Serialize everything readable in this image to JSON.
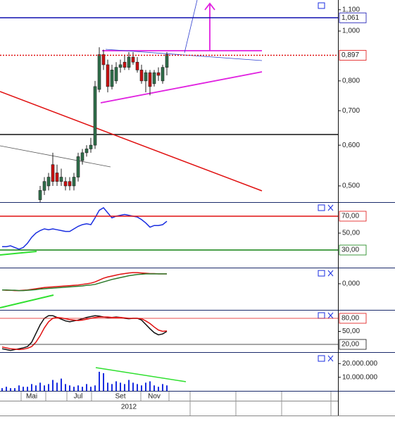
{
  "chart_data": [
    {
      "type": "candlestick",
      "log": true,
      "categories": [
        null,
        null,
        null,
        null,
        null,
        null,
        null,
        "Mai",
        null,
        null,
        null,
        null,
        null,
        null,
        null,
        null,
        null,
        null,
        "Jul",
        null,
        null,
        null,
        null,
        null,
        null,
        null,
        null,
        null,
        "Set",
        null,
        null,
        null,
        null,
        null,
        null,
        null,
        "Nov",
        null,
        null,
        null
      ],
      "xlabel": "2012",
      "open": [
        null,
        null,
        null,
        null,
        null,
        null,
        null,
        null,
        null,
        0.47,
        0.49,
        0.5,
        0.55,
        0.53,
        0.51,
        0.51,
        0.51,
        0.5,
        0.52,
        0.56,
        0.58,
        0.59,
        0.6,
        0.77,
        0.9,
        0.86,
        0.78,
        0.8,
        0.85,
        0.87,
        0.85,
        0.89,
        0.87,
        0.84,
        0.8,
        0.83,
        0.79,
        0.83,
        0.8,
        0.85
      ],
      "high": [
        null,
        null,
        null,
        null,
        null,
        null,
        null,
        null,
        null,
        0.5,
        0.52,
        0.53,
        0.58,
        0.55,
        0.54,
        0.52,
        0.52,
        0.53,
        0.58,
        0.59,
        0.6,
        0.62,
        0.8,
        0.93,
        0.92,
        0.88,
        0.86,
        0.87,
        0.88,
        0.9,
        0.91,
        0.91,
        0.89,
        0.86,
        0.84,
        0.84,
        0.84,
        0.85,
        0.86,
        0.91
      ],
      "low": [
        null,
        null,
        null,
        null,
        null,
        null,
        null,
        null,
        null,
        0.46,
        0.48,
        0.49,
        0.5,
        0.5,
        0.5,
        0.49,
        0.49,
        0.49,
        0.51,
        0.55,
        0.57,
        0.58,
        0.59,
        0.76,
        0.84,
        0.76,
        0.77,
        0.79,
        0.83,
        0.84,
        0.84,
        0.86,
        0.83,
        0.79,
        0.76,
        0.75,
        0.78,
        0.8,
        0.79,
        0.82
      ],
      "close": [
        null,
        null,
        null,
        null,
        null,
        null,
        null,
        null,
        null,
        0.49,
        0.51,
        0.52,
        0.51,
        0.51,
        0.52,
        0.5,
        0.5,
        0.52,
        0.57,
        0.58,
        0.59,
        0.6,
        0.78,
        0.9,
        0.86,
        0.78,
        0.84,
        0.85,
        0.86,
        0.85,
        0.89,
        0.87,
        0.84,
        0.8,
        0.83,
        0.78,
        0.83,
        0.82,
        0.85,
        0.9
      ],
      "up_color": "#2f6f4a",
      "down_color": "#cc1010",
      "ylim": [
        0.465,
        1.149
      ],
      "yticks": [
        {
          "value": 1.1,
          "label": "1,100"
        },
        {
          "value": 1.0,
          "label": "1,000"
        },
        {
          "value": 0.8,
          "label": "0,800"
        },
        {
          "value": 0.7,
          "label": "0,700"
        },
        {
          "value": 0.6,
          "label": "0,600"
        },
        {
          "value": 0.5,
          "label": "0,500"
        }
      ],
      "levels": [
        {
          "value": 1.061,
          "label": "1,061",
          "color": "#1010b0",
          "style": "solid"
        },
        {
          "value": 0.897,
          "label": "0,897",
          "color": "#e01010",
          "style": "dotted"
        }
      ]
    },
    {
      "type": "line",
      "series": [
        {
          "color": "#1a2ee0",
          "values": [
            34,
            34,
            35,
            33,
            31,
            33,
            38,
            45,
            50,
            53,
            55,
            54,
            55,
            54,
            53,
            52,
            52,
            55,
            58,
            60,
            61,
            60,
            68,
            77,
            80,
            74,
            68,
            70,
            71,
            72,
            71,
            70,
            69,
            66,
            62,
            57,
            59,
            59,
            60,
            64
          ]
        }
      ],
      "ylim": [
        9.2,
        85.8
      ],
      "yticks": [
        {
          "value": 50,
          "label": "50,00"
        }
      ],
      "levels": [
        {
          "value": 70,
          "label": "70,00",
          "color": "#e01010",
          "style": "solid"
        },
        {
          "value": 30,
          "label": "30,00",
          "color": "#108010",
          "style": "solid"
        }
      ]
    },
    {
      "type": "line",
      "series": [
        {
          "color": "#e01010",
          "values": [
            -0.02,
            -0.021,
            -0.021,
            -0.022,
            -0.022,
            -0.021,
            -0.02,
            -0.018,
            -0.016,
            -0.014,
            -0.012,
            -0.011,
            -0.01,
            -0.009,
            -0.008,
            -0.007,
            -0.006,
            -0.005,
            -0.004,
            -0.002,
            0.0,
            0.002,
            0.006,
            0.012,
            0.018,
            0.022,
            0.025,
            0.028,
            0.031,
            0.033,
            0.035,
            0.036,
            0.036,
            0.035,
            0.034,
            0.033,
            0.033,
            0.032,
            0.032,
            0.032
          ]
        },
        {
          "color": "#2a7a2a",
          "values": [
            -0.02,
            -0.02,
            -0.021,
            -0.021,
            -0.022,
            -0.022,
            -0.021,
            -0.02,
            -0.019,
            -0.017,
            -0.016,
            -0.015,
            -0.014,
            -0.013,
            -0.012,
            -0.011,
            -0.01,
            -0.009,
            -0.008,
            -0.007,
            -0.005,
            -0.004,
            -0.002,
            0.002,
            0.006,
            0.01,
            0.014,
            0.017,
            0.02,
            0.023,
            0.026,
            0.028,
            0.03,
            0.031,
            0.032,
            0.032,
            0.032,
            0.032,
            0.032,
            0.032
          ]
        }
      ],
      "ylim": [
        -0.0845,
        0.05
      ],
      "yticks": [
        {
          "value": 0,
          "label": "0,000"
        }
      ],
      "levels": []
    },
    {
      "type": "line",
      "series": [
        {
          "color": "#111111",
          "values": [
            10,
            8,
            6,
            8,
            10,
            12,
            15,
            25,
            45,
            65,
            80,
            86,
            86,
            82,
            78,
            74,
            72,
            74,
            76,
            79,
            82,
            84,
            86,
            85,
            83,
            82,
            82,
            83,
            82,
            80,
            79,
            80,
            80,
            76,
            66,
            56,
            47,
            42,
            44,
            50
          ]
        },
        {
          "color": "#e01010",
          "values": [
            14,
            12,
            10,
            9,
            8,
            9,
            11,
            15,
            25,
            40,
            58,
            72,
            80,
            82,
            81,
            79,
            77,
            76,
            75,
            76,
            78,
            80,
            82,
            83,
            83,
            83,
            82,
            82,
            82,
            81,
            80,
            80,
            80,
            79,
            74,
            68,
            60,
            53,
            50,
            51
          ]
        }
      ],
      "ylim": [
        2.2,
        97.8
      ],
      "yticks": [
        {
          "value": 50,
          "label": "50,00"
        }
      ],
      "levels": [
        {
          "value": 80,
          "label": "80,00",
          "color": "#e01010",
          "style": "thin"
        },
        {
          "value": 20,
          "label": "20,00",
          "color": "#111111",
          "style": "thin"
        }
      ]
    },
    {
      "type": "bar",
      "color": "#1a2ee0",
      "values": [
        2000000,
        3000000,
        2000000,
        2000000,
        4000000,
        3000000,
        3000000,
        5000000,
        4000000,
        6000000,
        4000000,
        5000000,
        8000000,
        6000000,
        9000000,
        5000000,
        4000000,
        3000000,
        4000000,
        3000000,
        5000000,
        3000000,
        4000000,
        14000000,
        13000000,
        6000000,
        5000000,
        7000000,
        6000000,
        5000000,
        8000000,
        6000000,
        5000000,
        4000000,
        6000000,
        7000000,
        4000000,
        3000000,
        5000000,
        4000000
      ],
      "ylim": [
        0,
        27900000
      ],
      "yticks": [
        {
          "value": 20000000,
          "label": "20.000.000"
        },
        {
          "value": 10000000,
          "label": "10.000.000"
        }
      ],
      "levels": []
    }
  ]
}
